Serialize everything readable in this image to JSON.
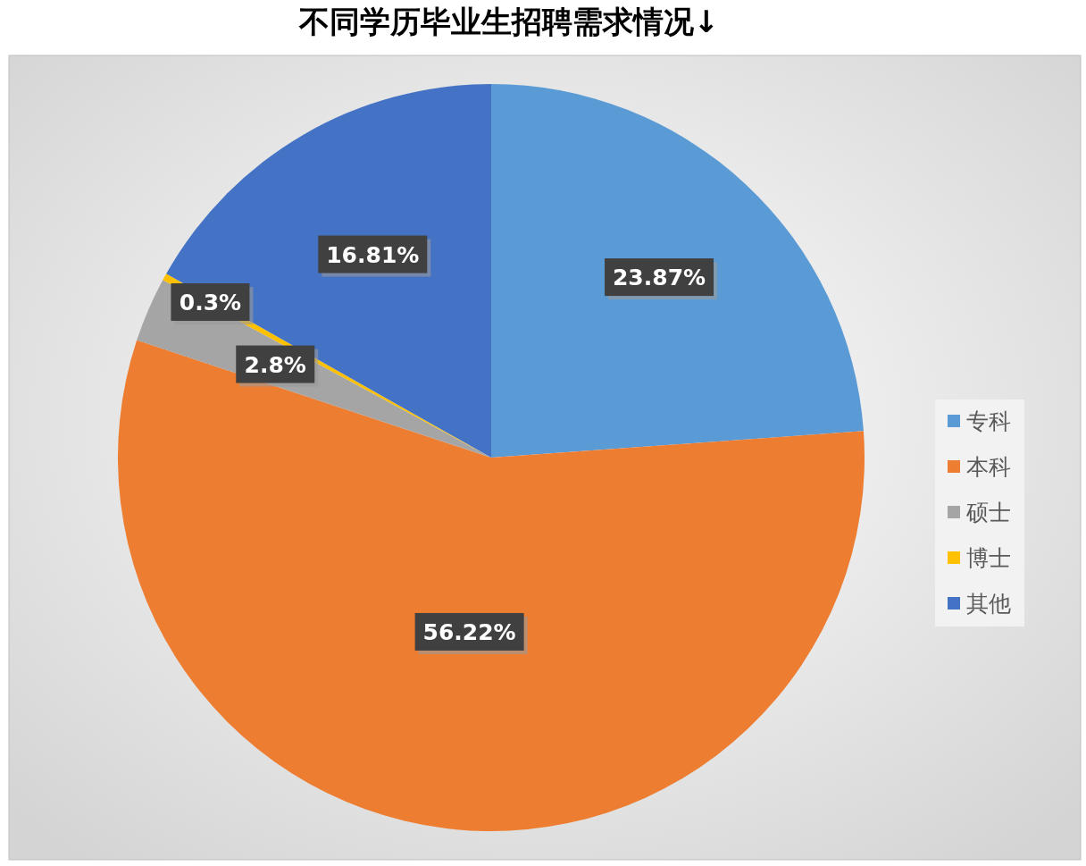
{
  "chart_data": {
    "type": "pie",
    "title": "不同学历毕业生招聘需求情况↓",
    "categories": [
      "专科",
      "本科",
      "硕士",
      "博士",
      "其他"
    ],
    "values": [
      23.87,
      56.22,
      2.8,
      0.3,
      16.81
    ],
    "value_labels": [
      "23.87%",
      "56.22%",
      "2.8%",
      "0.3%",
      "16.81%"
    ],
    "colors": [
      "#5b9bd5",
      "#ed7d31",
      "#a5a5a5",
      "#ffc000",
      "#4472c4"
    ],
    "legend": "right"
  }
}
